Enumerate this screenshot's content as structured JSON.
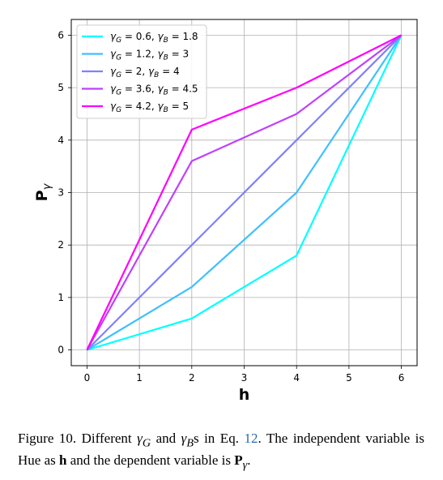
{
  "chart_data": {
    "type": "line",
    "xlabel": "h",
    "ylabel": "P",
    "ylabel_sub": "γ",
    "xlim": [
      -0.3,
      6.3
    ],
    "ylim": [
      -0.3,
      6.3
    ],
    "xticks": [
      0,
      1,
      2,
      3,
      4,
      5,
      6
    ],
    "yticks": [
      0,
      1,
      2,
      3,
      4,
      5,
      6
    ],
    "grid": true,
    "legend_position": "top-left",
    "x": [
      0,
      2,
      4,
      6
    ],
    "series": [
      {
        "name": "γ_G = 0.6, γ_B = 1.8",
        "label_parts": [
          "0.6",
          "1.8"
        ],
        "color": "#00ffff",
        "values": [
          0,
          0.6,
          1.8,
          6
        ]
      },
      {
        "name": "γ_G = 1.2, γ_B = 3",
        "label_parts": [
          "1.2",
          "3"
        ],
        "color": "#40bfff",
        "values": [
          0,
          1.2,
          3,
          6
        ]
      },
      {
        "name": "γ_G = 2, γ_B = 4",
        "label_parts": [
          "2",
          "4"
        ],
        "color": "#8080ff",
        "values": [
          0,
          2,
          4,
          6
        ]
      },
      {
        "name": "γ_G = 3.6, γ_B = 4.5",
        "label_parts": [
          "3.6",
          "4.5"
        ],
        "color": "#bf40ff",
        "values": [
          0,
          3.6,
          4.5,
          6
        ]
      },
      {
        "name": "γ_G = 4.2, γ_B = 5",
        "label_parts": [
          "4.2",
          "5"
        ],
        "color": "#ff00ff",
        "values": [
          0,
          4.2,
          5,
          6
        ]
      }
    ]
  },
  "caption": {
    "part1": "Figure 10. Different ",
    "gamma_g": "γ",
    "sub_g": "G",
    "and": " and ",
    "gamma_b": "γ",
    "sub_b": "B",
    "part2": "s in Eq. ",
    "eq_ref": "12",
    "part3": ". The independent variable is Hue as ",
    "h_bold": "h",
    "part4": " and the dependent variable is ",
    "p_bold": "P",
    "p_sub": "γ",
    "part5": "."
  }
}
